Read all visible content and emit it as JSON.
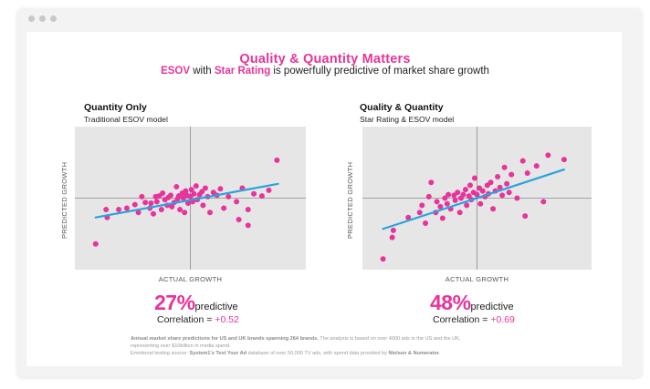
{
  "colors": {
    "accent": "#e8339a",
    "line": "#2aa3de",
    "plot_bg": "#e6e6e6",
    "axis": "#8c8c8c"
  },
  "window": {
    "controls": [
      "window-dot-icon",
      "window-dot-icon",
      "window-dot-icon"
    ]
  },
  "header": {
    "title": "Quality & Quantity Matters",
    "subtitle_part1": "ESOV",
    "subtitle_part2": " with ",
    "subtitle_part3": "Star Rating",
    "subtitle_part4": " is powerfully predictive of market share growth"
  },
  "panels": [
    {
      "title": "Quantity Only",
      "subtitle": "Traditional ESOV model",
      "ylabel": "PREDICTED GROWTH",
      "xlabel": "ACTUAL GROWTH",
      "stat_value": "27%",
      "stat_label": "predictive",
      "corr_label": "Correlation = ",
      "corr_value": "+0.52"
    },
    {
      "title": "Quality & Quantity",
      "subtitle": "Star Rating & ESOV model",
      "ylabel": "PREDICTED GROWTH",
      "xlabel": "ACTUAL GROWTH",
      "stat_value": "48%",
      "stat_label": "predictive",
      "corr_label": "Correlation = ",
      "corr_value": "+0.69"
    }
  ],
  "footnote": {
    "line1_bold": "Annual market share predictions for US and UK brands spanning 264 brands.",
    "line1_rest": " The analysis is based on over 4000 ads in the US and the UK,",
    "line2": "representing over $10billion in media spend.",
    "line3_start": "Emotional testing source: ",
    "line3_bold1": "System1's Test Your Ad",
    "line3_mid": " database of over 50,000 TV ads, with spend data provided by ",
    "line3_bold2": "Nielsen & Numerator",
    "line3_end": "."
  },
  "chart_data": [
    {
      "type": "scatter",
      "title": "Quantity Only",
      "subtitle": "Traditional ESOV model",
      "xlabel": "ACTUAL GROWTH",
      "ylabel": "PREDICTED GROWTH",
      "xlim": [
        -1,
        1
      ],
      "ylim": [
        -1,
        1
      ],
      "grid": false,
      "trendline": {
        "x": [
          -0.82,
          0.76
        ],
        "y": [
          -0.27,
          0.2
        ]
      },
      "points": [
        [
          -0.82,
          -0.64
        ],
        [
          -0.73,
          -0.16
        ],
        [
          -0.72,
          -0.27
        ],
        [
          -0.62,
          -0.16
        ],
        [
          -0.55,
          -0.14
        ],
        [
          -0.48,
          -0.09
        ],
        [
          -0.45,
          -0.2
        ],
        [
          -0.42,
          0.02
        ],
        [
          -0.39,
          -0.06
        ],
        [
          -0.35,
          -0.14
        ],
        [
          -0.34,
          -0.07
        ],
        [
          -0.32,
          -0.22
        ],
        [
          -0.3,
          0.02
        ],
        [
          -0.29,
          -0.05
        ],
        [
          -0.27,
          0.03
        ],
        [
          -0.25,
          -0.16
        ],
        [
          -0.24,
          0.07
        ],
        [
          -0.22,
          -0.02
        ],
        [
          -0.2,
          -0.1
        ],
        [
          -0.19,
          0.01
        ],
        [
          -0.17,
          0.04
        ],
        [
          -0.16,
          -0.12
        ],
        [
          -0.14,
          -0.06
        ],
        [
          -0.12,
          0.16
        ],
        [
          -0.11,
          -0.01
        ],
        [
          -0.1,
          0.03
        ],
        [
          -0.09,
          -0.16
        ],
        [
          -0.07,
          0.07
        ],
        [
          -0.06,
          0.0
        ],
        [
          -0.05,
          -0.2
        ],
        [
          -0.04,
          0.1
        ],
        [
          -0.03,
          0.04
        ],
        [
          -0.02,
          -0.07
        ],
        [
          0.0,
          0.02
        ],
        [
          0.01,
          0.12
        ],
        [
          0.02,
          -0.05
        ],
        [
          0.03,
          0.06
        ],
        [
          0.05,
          0.17
        ],
        [
          0.06,
          -0.02
        ],
        [
          0.08,
          0.05
        ],
        [
          0.1,
          0.09
        ],
        [
          0.11,
          -0.1
        ],
        [
          0.13,
          0.14
        ],
        [
          0.15,
          0.02
        ],
        [
          0.17,
          -0.2
        ],
        [
          0.2,
          0.08
        ],
        [
          0.23,
          0.04
        ],
        [
          0.26,
          0.13
        ],
        [
          0.29,
          -0.14
        ],
        [
          0.33,
          0.02
        ],
        [
          0.4,
          -0.05
        ],
        [
          0.45,
          0.14
        ],
        [
          0.5,
          -0.16
        ],
        [
          0.55,
          0.06
        ],
        [
          0.42,
          -0.3
        ],
        [
          0.5,
          -0.38
        ],
        [
          0.62,
          0.03
        ],
        [
          0.68,
          0.11
        ],
        [
          0.75,
          0.53
        ]
      ]
    },
    {
      "type": "scatter",
      "title": "Quality & Quantity",
      "subtitle": "Star Rating & ESOV model",
      "xlabel": "ACTUAL GROWTH",
      "ylabel": "PREDICTED GROWTH",
      "xlim": [
        -1,
        1
      ],
      "ylim": [
        -1,
        1
      ],
      "grid": false,
      "trendline": {
        "x": [
          -0.82,
          0.76
        ],
        "y": [
          -0.43,
          0.4
        ]
      },
      "points": [
        [
          -0.82,
          -0.85
        ],
        [
          -0.74,
          -0.55
        ],
        [
          -0.73,
          -0.45
        ],
        [
          -0.6,
          -0.27
        ],
        [
          -0.5,
          -0.2
        ],
        [
          -0.48,
          -0.1
        ],
        [
          -0.45,
          -0.35
        ],
        [
          -0.42,
          0.02
        ],
        [
          -0.4,
          0.22
        ],
        [
          -0.36,
          -0.2
        ],
        [
          -0.35,
          -0.05
        ],
        [
          -0.32,
          -0.12
        ],
        [
          -0.3,
          -0.28
        ],
        [
          -0.28,
          0.0
        ],
        [
          -0.26,
          -0.08
        ],
        [
          -0.25,
          0.05
        ],
        [
          -0.23,
          -0.15
        ],
        [
          -0.2,
          0.04
        ],
        [
          -0.19,
          -0.03
        ],
        [
          -0.17,
          0.08
        ],
        [
          -0.15,
          -0.2
        ],
        [
          -0.14,
          0.0
        ],
        [
          -0.12,
          0.05
        ],
        [
          -0.1,
          0.12
        ],
        [
          -0.09,
          -0.1
        ],
        [
          -0.07,
          0.03
        ],
        [
          -0.06,
          0.18
        ],
        [
          -0.05,
          -0.02
        ],
        [
          -0.03,
          0.08
        ],
        [
          -0.02,
          0.28
        ],
        [
          0.0,
          0.05
        ],
        [
          0.02,
          0.14
        ],
        [
          0.03,
          -0.08
        ],
        [
          0.05,
          0.1
        ],
        [
          0.07,
          0.02
        ],
        [
          0.09,
          0.18
        ],
        [
          0.1,
          0.06
        ],
        [
          0.12,
          0.22
        ],
        [
          0.14,
          -0.15
        ],
        [
          0.16,
          0.1
        ],
        [
          0.18,
          0.3
        ],
        [
          0.2,
          0.15
        ],
        [
          0.22,
          0.04
        ],
        [
          0.24,
          0.43
        ],
        [
          0.26,
          0.2
        ],
        [
          0.28,
          0.08
        ],
        [
          0.3,
          0.33
        ],
        [
          0.35,
          0.0
        ],
        [
          0.4,
          0.52
        ],
        [
          0.42,
          -0.25
        ],
        [
          0.44,
          0.35
        ],
        [
          0.52,
          0.45
        ],
        [
          0.58,
          -0.05
        ],
        [
          0.62,
          0.6
        ],
        [
          0.76,
          0.54
        ]
      ]
    }
  ]
}
